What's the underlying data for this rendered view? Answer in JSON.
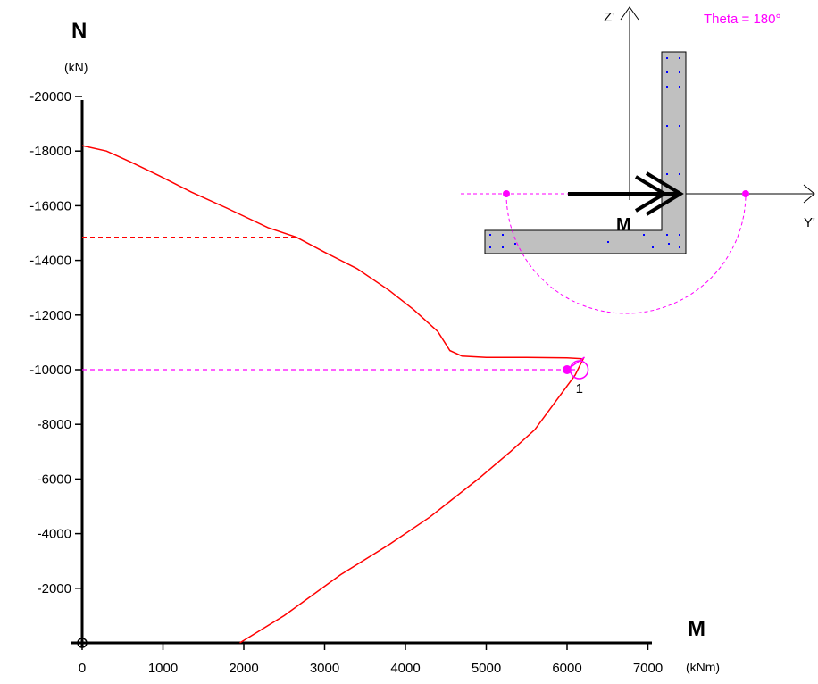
{
  "chart_data": {
    "type": "line",
    "title": "",
    "y_axis": {
      "label": "N",
      "unit": "(kN)",
      "range": [
        0,
        -20000
      ],
      "ticks": [
        "-20000",
        "-18000",
        "-16000",
        "-14000",
        "-12000",
        "-10000",
        "-8000",
        "-6000",
        "-4000",
        "-2000"
      ]
    },
    "x_axis": {
      "label": "M",
      "unit": "(kNm)",
      "range": [
        0,
        7000
      ],
      "ticks": [
        "0",
        "1000",
        "2000",
        "3000",
        "4000",
        "5000",
        "6000",
        "7000"
      ]
    },
    "grid": false,
    "series": [
      {
        "color": "#ff0000",
        "points": [
          [
            0,
            -18200
          ],
          [
            300,
            -18000
          ],
          [
            600,
            -17600
          ],
          [
            950,
            -17100
          ],
          [
            1350,
            -16500
          ],
          [
            1800,
            -15900
          ],
          [
            2300,
            -15200
          ],
          [
            2650,
            -14850
          ],
          [
            3000,
            -14300
          ],
          [
            3400,
            -13700
          ],
          [
            3800,
            -12900
          ],
          [
            4100,
            -12200
          ],
          [
            4400,
            -11400
          ],
          [
            4550,
            -10700
          ],
          [
            4700,
            -10500
          ],
          [
            5000,
            -10450
          ],
          [
            5500,
            -10450
          ],
          [
            6000,
            -10430
          ],
          [
            6200,
            -10400
          ],
          [
            6100,
            -9800
          ],
          [
            5900,
            -9000
          ],
          [
            5600,
            -7800
          ],
          [
            5300,
            -7000
          ],
          [
            4900,
            -6000
          ],
          [
            4300,
            -4600
          ],
          [
            3800,
            -3600
          ],
          [
            3200,
            -2500
          ],
          [
            2500,
            -1000
          ],
          [
            1950,
            0
          ]
        ]
      }
    ],
    "guides": [
      {
        "color": "#ff0000",
        "style": "dashed",
        "from": [
          0,
          -14850
        ],
        "to": [
          2650,
          -14850
        ]
      },
      {
        "color": "#ff00ff",
        "style": "dashed",
        "from": [
          0,
          -10000
        ],
        "to": [
          6100,
          -10000
        ]
      }
    ],
    "design_point": {
      "M": 6000,
      "N": -10000,
      "label": "1"
    },
    "capacity_circle": {
      "M": 6150,
      "N": -10000
    },
    "inset": {
      "theta_label": "Theta = 180°",
      "z_label": "Z'",
      "y_label": "Y'",
      "moment_label": "M"
    },
    "colors": {
      "curve": "#ff0000",
      "design": "#ff00ff",
      "axis": "#000000",
      "section": "#c0c0c0",
      "rebar": "#0000ff"
    }
  }
}
